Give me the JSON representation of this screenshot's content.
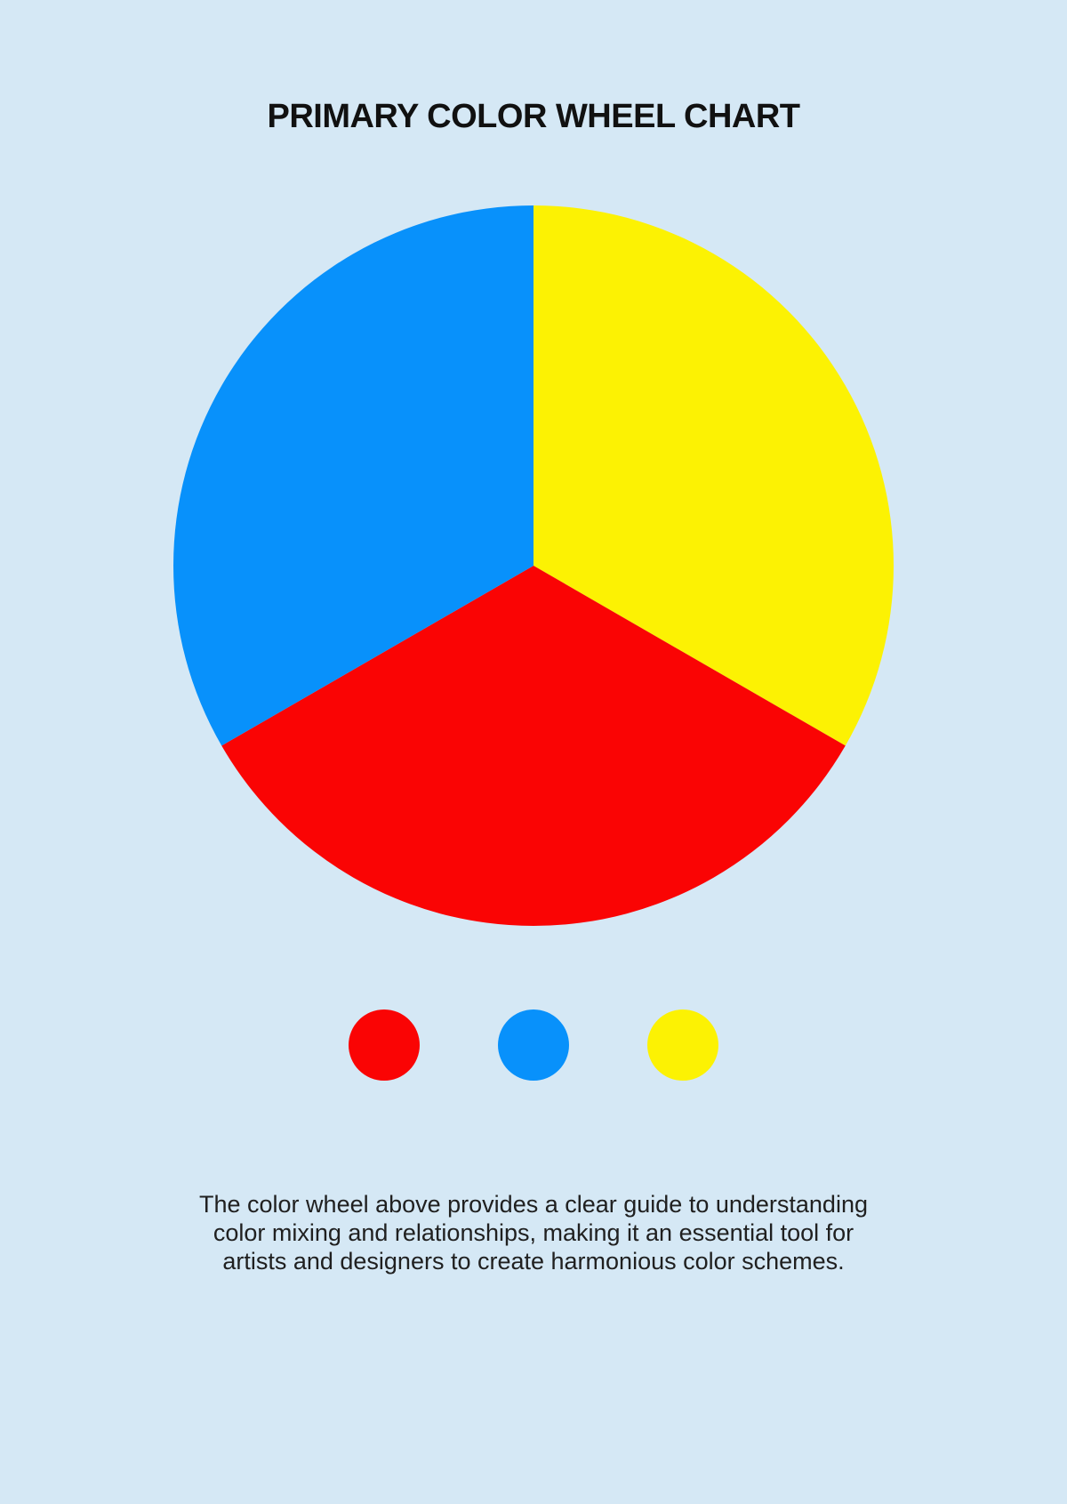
{
  "page": {
    "background_color": "#D5E8F5",
    "title_color": "#111111",
    "text_color": "#202020"
  },
  "chart_data": {
    "type": "pie",
    "title": "PRIMARY COLOR WHEEL CHART",
    "start_angle_deg": 0,
    "direction": "clockwise",
    "legend_position": "below",
    "slices": [
      {
        "label": "yellow",
        "value": 0.3333,
        "color": "#FCF203"
      },
      {
        "label": "red",
        "value": 0.3334,
        "color": "#FA0404"
      },
      {
        "label": "blue",
        "value": 0.3333,
        "color": "#0891FB"
      }
    ],
    "legend": [
      {
        "label": "red",
        "color": "#FA0404"
      },
      {
        "label": "blue",
        "color": "#0891FB"
      },
      {
        "label": "yellow",
        "color": "#FCF203"
      }
    ]
  },
  "description": "The color wheel above provides a clear guide to understanding color mixing and relationships, making it an essential tool for artists and designers to create harmonious color schemes."
}
